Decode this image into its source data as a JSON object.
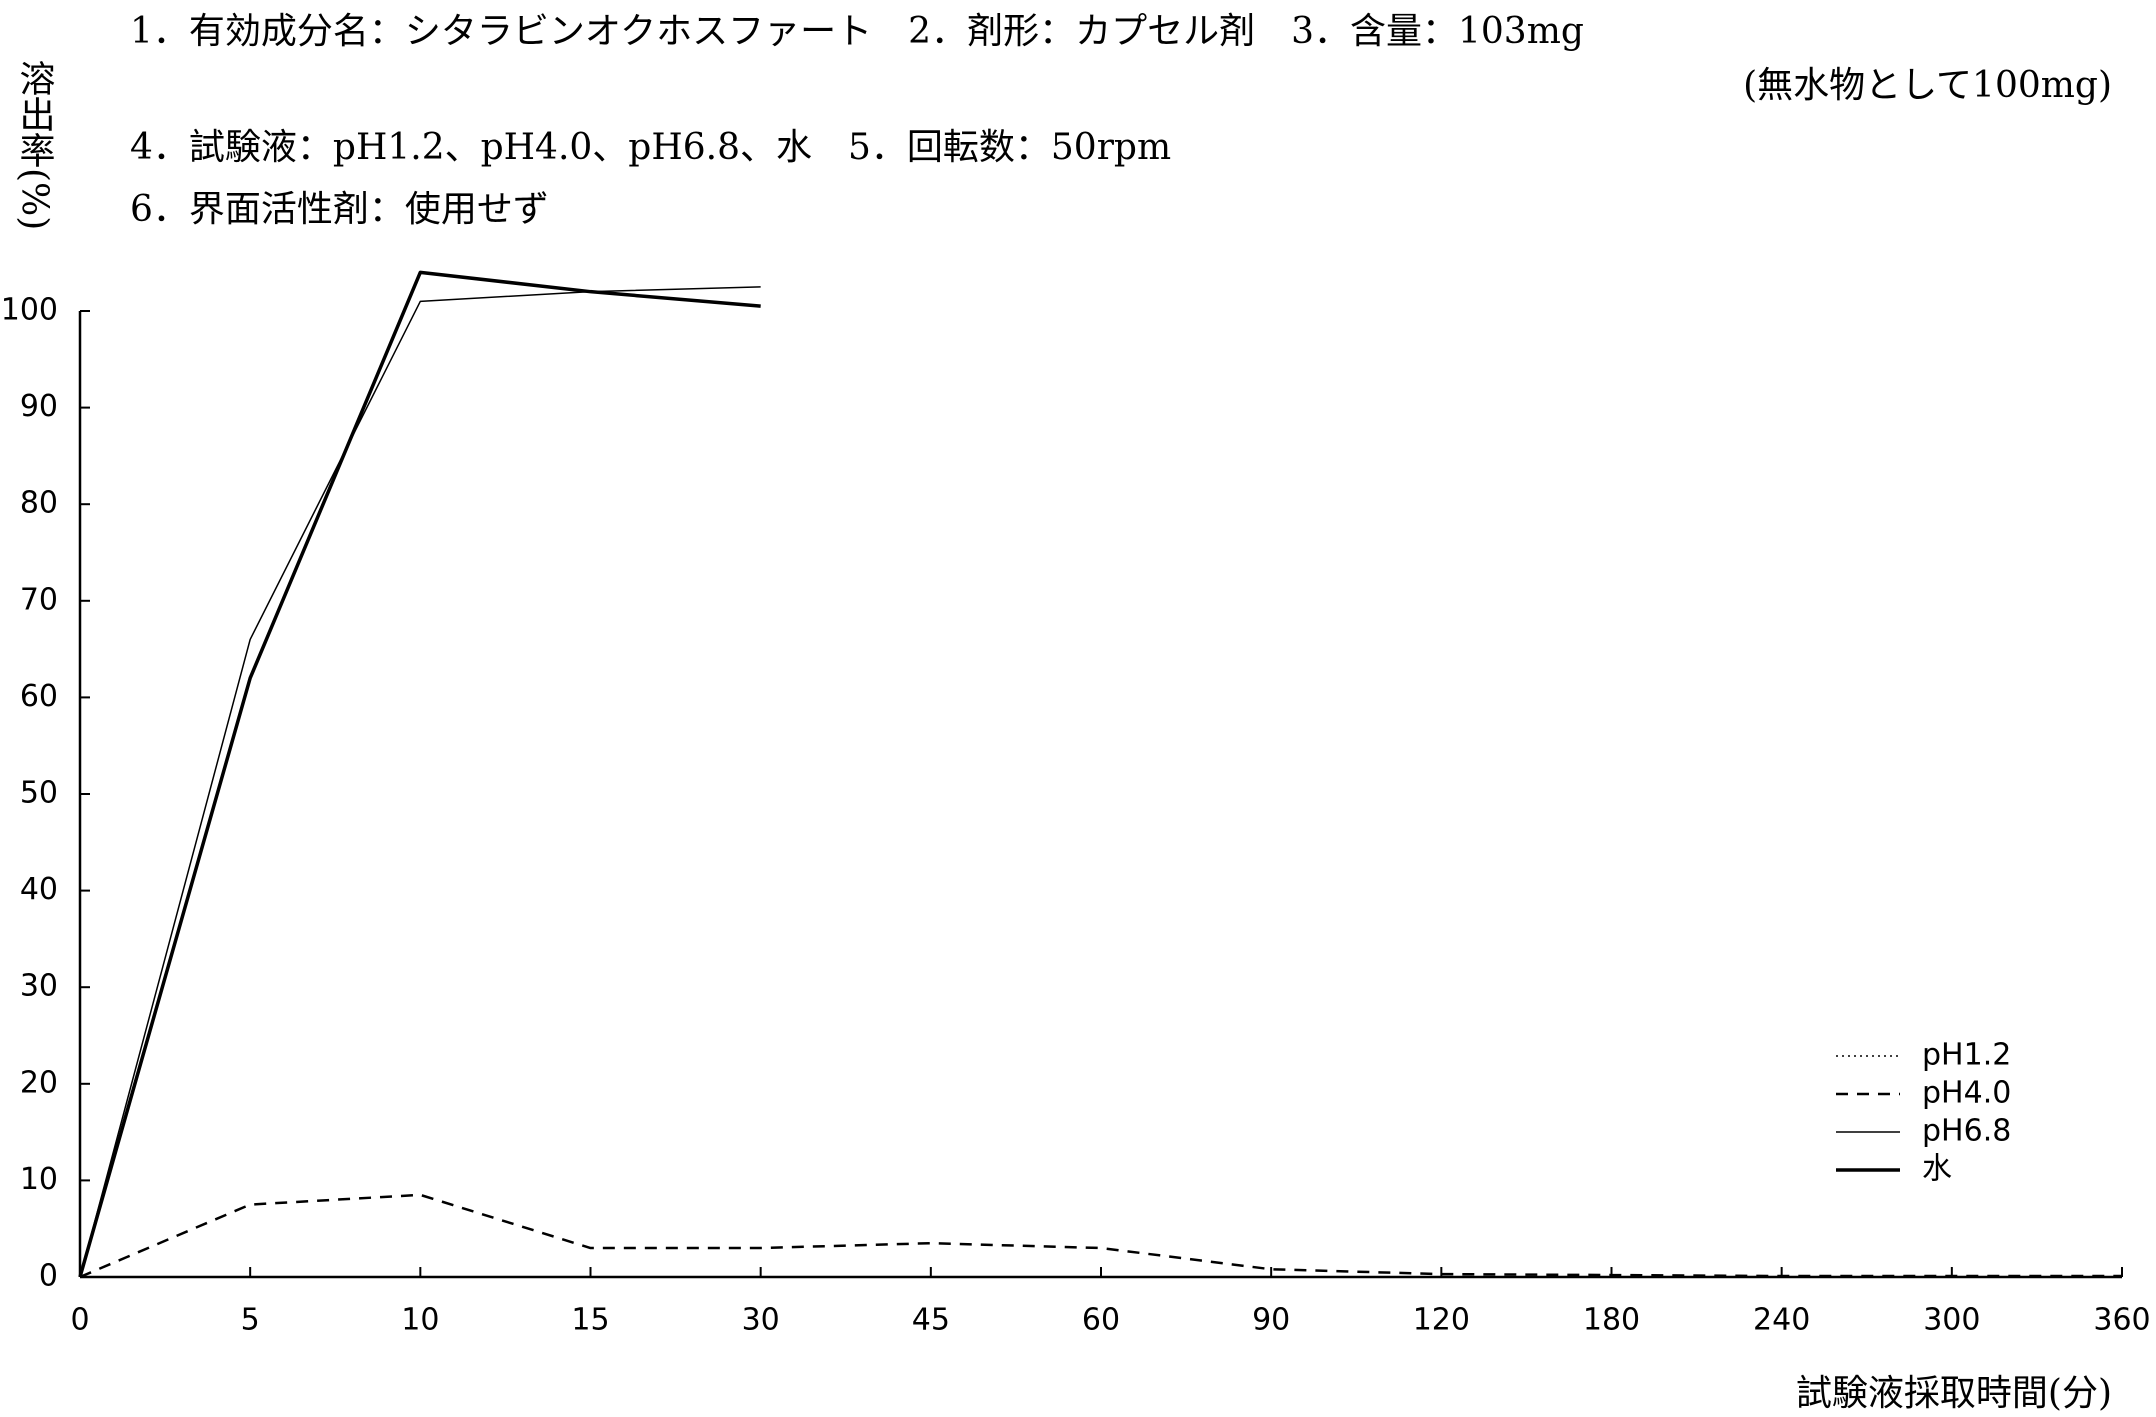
{
  "chart_data": {
    "type": "line",
    "annotations": [
      "1．有効成分名：シタラビンオクホスファート　2．剤形：カプセル剤　3．含量：103mg",
      "(無水物として100mg)",
      "4．試験液：pH1.2、pH4.0、pH6.8、水　5．回転数：50rpm",
      "6．界面活性剤：使用せず"
    ],
    "y_label": "溶出率(%)",
    "x_label": "試験液採取時間(分)",
    "categories": [
      "0",
      "5",
      "10",
      "15",
      "30",
      "45",
      "60",
      "90",
      "120",
      "180",
      "240",
      "300",
      "360"
    ],
    "series": [
      {
        "name": "pH1.2",
        "color": "#000000",
        "line_style": "dotted",
        "line_width": 1.5,
        "values": [
          0,
          0,
          0,
          0,
          0,
          0,
          0,
          0,
          0,
          0,
          0,
          0,
          0
        ]
      },
      {
        "name": "pH4.0",
        "color": "#000000",
        "line_style": "dashed",
        "line_width": 2.5,
        "values": [
          0,
          7.5,
          8.5,
          3,
          3,
          3.5,
          3,
          0.8,
          0.3,
          0.2,
          0.1,
          0.1,
          0.1
        ]
      },
      {
        "name": "pH6.8",
        "color": "#000000",
        "line_style": "solid",
        "line_width": 1.5,
        "values": [
          0,
          66,
          101,
          102,
          102.5,
          null,
          null,
          null,
          null,
          null,
          null,
          null,
          null
        ]
      },
      {
        "name": "水",
        "color": "#000000",
        "line_style": "solid",
        "line_width": 3.5,
        "values": [
          0,
          62,
          104,
          102,
          100.5,
          null,
          null,
          null,
          null,
          null,
          null,
          null,
          null
        ]
      }
    ],
    "ylim": [
      0,
      100
    ],
    "yticks": [
      0,
      10,
      20,
      30,
      40,
      50,
      60,
      70,
      80,
      90,
      100
    ],
    "legend": "lower right",
    "grid": false
  }
}
